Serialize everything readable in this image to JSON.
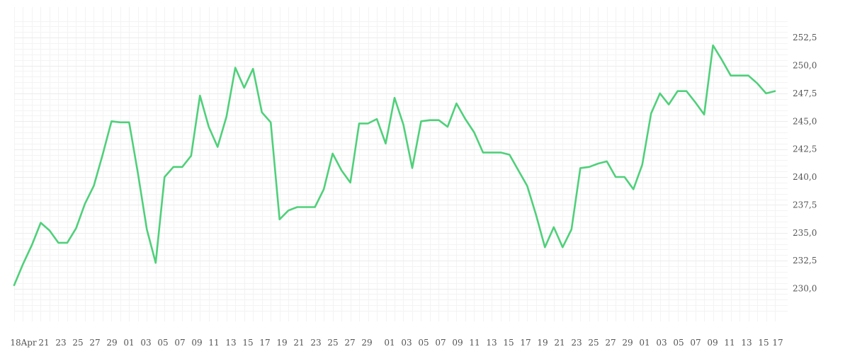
{
  "chart_data": {
    "type": "line",
    "title": "",
    "xlabel": "",
    "ylabel": "",
    "ylim": [
      227.5,
      255.0
    ],
    "grid": true,
    "legend": "none",
    "line_color": "#4fd07a",
    "y_ticks": [
      "230,0",
      "232,5",
      "235,0",
      "237,5",
      "240,0",
      "242,5",
      "245,0",
      "247,5",
      "250,0",
      "252,5"
    ],
    "x_tick_labels": [
      "18Apr",
      "21",
      "23",
      "25",
      "27",
      "29",
      "01",
      "03",
      "05",
      "07",
      "09",
      "11",
      "13",
      "15",
      "17",
      "19",
      "21",
      "23",
      "25",
      "27",
      "29",
      "01",
      "03",
      "05",
      "07",
      "09",
      "11",
      "13",
      "15",
      "17",
      "19",
      "21",
      "23",
      "25",
      "27",
      "29",
      "01",
      "03",
      "05",
      "07",
      "09",
      "11",
      "13",
      "15",
      "17"
    ],
    "series": [
      {
        "values": [
          230.3,
          232.2,
          233.9,
          235.9,
          235.2,
          234.1,
          234.1,
          235.4,
          237.6,
          239.2,
          242.0,
          245.0,
          244.9,
          244.9,
          240.3,
          235.3,
          232.3,
          240.0,
          240.9,
          240.9,
          241.9,
          247.3,
          244.5,
          242.7,
          245.4,
          249.8,
          248.0,
          249.7,
          245.8,
          244.9,
          236.2,
          237.0,
          237.3,
          237.3,
          237.3,
          238.9,
          242.1,
          240.6,
          239.5,
          244.8,
          244.8,
          245.2,
          243.0,
          247.1,
          244.7,
          240.8,
          245.0,
          245.1,
          245.1,
          244.5,
          246.6,
          245.2,
          244.0,
          242.2,
          242.2,
          242.2,
          242.0,
          240.6,
          239.2,
          236.6,
          233.7,
          235.5,
          233.7,
          235.3,
          240.8,
          240.9,
          241.2,
          241.4,
          240.0,
          240.0,
          238.9,
          241.1,
          245.7,
          247.5,
          246.5,
          247.7,
          247.7,
          246.7,
          245.6,
          251.8,
          250.5,
          249.1,
          249.1,
          249.1,
          248.4,
          247.5,
          247.7
        ]
      }
    ]
  }
}
